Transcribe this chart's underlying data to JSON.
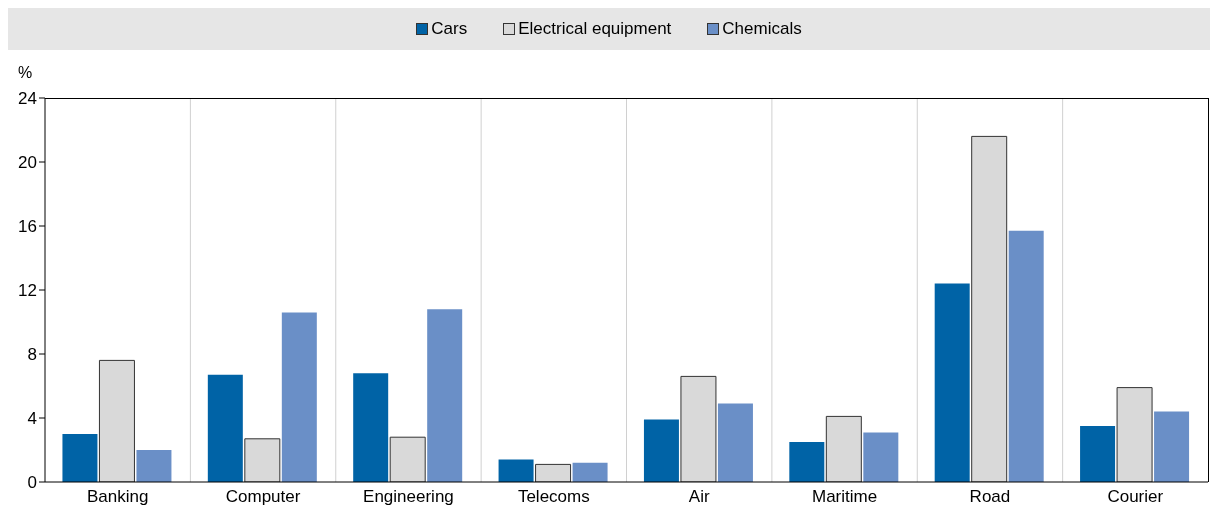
{
  "chart_data": {
    "type": "bar",
    "ylabel": "%",
    "categories": [
      "Banking",
      "Computer",
      "Engineering",
      "Telecoms",
      "Air",
      "Maritime",
      "Road",
      "Courier"
    ],
    "series": [
      {
        "name": "Cars",
        "color": "#0063a6",
        "values": [
          3.0,
          6.7,
          6.8,
          1.4,
          3.9,
          2.5,
          12.4,
          3.5
        ]
      },
      {
        "name": "Electrical equipment",
        "color": "#d9d9d9",
        "values": [
          7.6,
          2.7,
          2.8,
          1.1,
          6.6,
          4.1,
          21.6,
          5.9
        ]
      },
      {
        "name": "Chemicals",
        "color": "#6a8fc7",
        "values": [
          2.0,
          10.6,
          10.8,
          1.2,
          4.9,
          3.1,
          15.7,
          4.4
        ]
      }
    ],
    "ylim": [
      0,
      24
    ],
    "yticks": [
      0,
      4,
      8,
      12,
      16,
      20,
      24
    ],
    "grid": "x",
    "legend": "top"
  }
}
